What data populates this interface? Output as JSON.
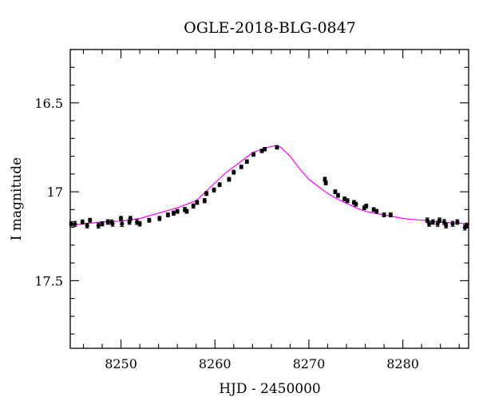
{
  "chart_data": {
    "type": "scatter",
    "title": "OGLE-2018-BLG-0847",
    "xlabel": "HJD - 2450000",
    "ylabel": "I magnitude",
    "xlim": [
      8244.6,
      8287.0
    ],
    "ylim": [
      17.88,
      16.2
    ],
    "y_inverted": true,
    "xticks": [
      8250,
      8260,
      8270,
      8280
    ],
    "xtick_labels": [
      "8250",
      "8260",
      "8270",
      "8280"
    ],
    "yticks": [
      16.5,
      17,
      17.5
    ],
    "ytick_labels": [
      "16.5",
      "17",
      "17.5"
    ],
    "x_minor_step": 2,
    "y_minor_step": 0.1,
    "grid": false,
    "legend": "none",
    "colors": {
      "points": "#000000",
      "model": "#ff00ff",
      "frame": "#000000"
    },
    "model": {
      "name": "",
      "x": [
        8244.6,
        8246,
        8248,
        8250,
        8252,
        8254,
        8256,
        8258,
        8259,
        8260,
        8261,
        8262,
        8263,
        8264,
        8265,
        8266,
        8266.6,
        8267,
        8268,
        8269,
        8270,
        8271,
        8272,
        8273,
        8274,
        8275,
        8276,
        8278,
        8280,
        8282,
        8284,
        8287.0
      ],
      "y": [
        17.19,
        17.18,
        17.17,
        17.165,
        17.15,
        17.12,
        17.09,
        17.05,
        17.0,
        16.95,
        16.9,
        16.86,
        16.82,
        16.78,
        16.76,
        16.745,
        16.74,
        16.75,
        16.8,
        16.87,
        16.93,
        16.97,
        17.01,
        17.04,
        17.065,
        17.09,
        17.11,
        17.13,
        17.15,
        17.16,
        17.17,
        17.18
      ]
    },
    "series": [
      {
        "name": "",
        "x": [
          8244.7,
          8245.1,
          8245.9,
          8246.4,
          8246.7,
          8247.6,
          8248.0,
          8248.6,
          8249.0,
          8249.1,
          8250.0,
          8250.1,
          8250.9,
          8251.0,
          8251.7,
          8252.0,
          8253.0,
          8254.1,
          8255.0,
          8255.6,
          8256.0,
          8256.8,
          8257.0,
          8257.7,
          8258.1,
          8258.9,
          8259.1,
          8259.9,
          8260.5,
          8261.5,
          8262.0,
          8262.8,
          8263.4,
          8264.1,
          8265.0,
          8265.3,
          8266.6,
          8271.7,
          8271.8,
          8272.8,
          8273.1,
          8273.8,
          8274.1,
          8274.8,
          8275.0,
          8275.9,
          8276.1,
          8276.9,
          8277.2,
          8278.0,
          8278.7,
          8282.6,
          8282.8,
          8283.2,
          8283.7,
          8283.9,
          8284.4,
          8284.6,
          8285.3,
          8285.8,
          8286.6,
          8286.8
        ],
        "y": [
          17.18,
          17.18,
          17.17,
          17.19,
          17.16,
          17.19,
          17.18,
          17.17,
          17.17,
          17.18,
          17.15,
          17.18,
          17.17,
          17.15,
          17.17,
          17.18,
          17.16,
          17.15,
          17.13,
          17.12,
          17.11,
          17.1,
          17.11,
          17.08,
          17.06,
          17.05,
          17.01,
          16.99,
          16.96,
          16.93,
          16.89,
          16.86,
          16.83,
          16.79,
          16.77,
          16.76,
          16.75,
          16.93,
          16.95,
          17.0,
          17.02,
          17.04,
          17.05,
          17.06,
          17.07,
          17.09,
          17.08,
          17.1,
          17.11,
          17.13,
          17.13,
          17.16,
          17.18,
          17.17,
          17.18,
          17.16,
          17.17,
          17.19,
          17.18,
          17.17,
          17.2,
          17.19
        ],
        "yerr": [
          0.012,
          0.014,
          0.012,
          0.013,
          0.011,
          0.014,
          0.012,
          0.013,
          0.012,
          0.014,
          0.012,
          0.015,
          0.013,
          0.012,
          0.014,
          0.013,
          0.011,
          0.012,
          0.011,
          0.012,
          0.011,
          0.012,
          0.011,
          0.012,
          0.011,
          0.012,
          0.011,
          0.011,
          0.011,
          0.011,
          0.011,
          0.01,
          0.01,
          0.01,
          0.01,
          0.01,
          0.01,
          0.012,
          0.011,
          0.011,
          0.011,
          0.011,
          0.011,
          0.011,
          0.011,
          0.011,
          0.011,
          0.011,
          0.011,
          0.011,
          0.011,
          0.013,
          0.014,
          0.013,
          0.014,
          0.013,
          0.014,
          0.013,
          0.014,
          0.013,
          0.015,
          0.014
        ]
      }
    ]
  }
}
